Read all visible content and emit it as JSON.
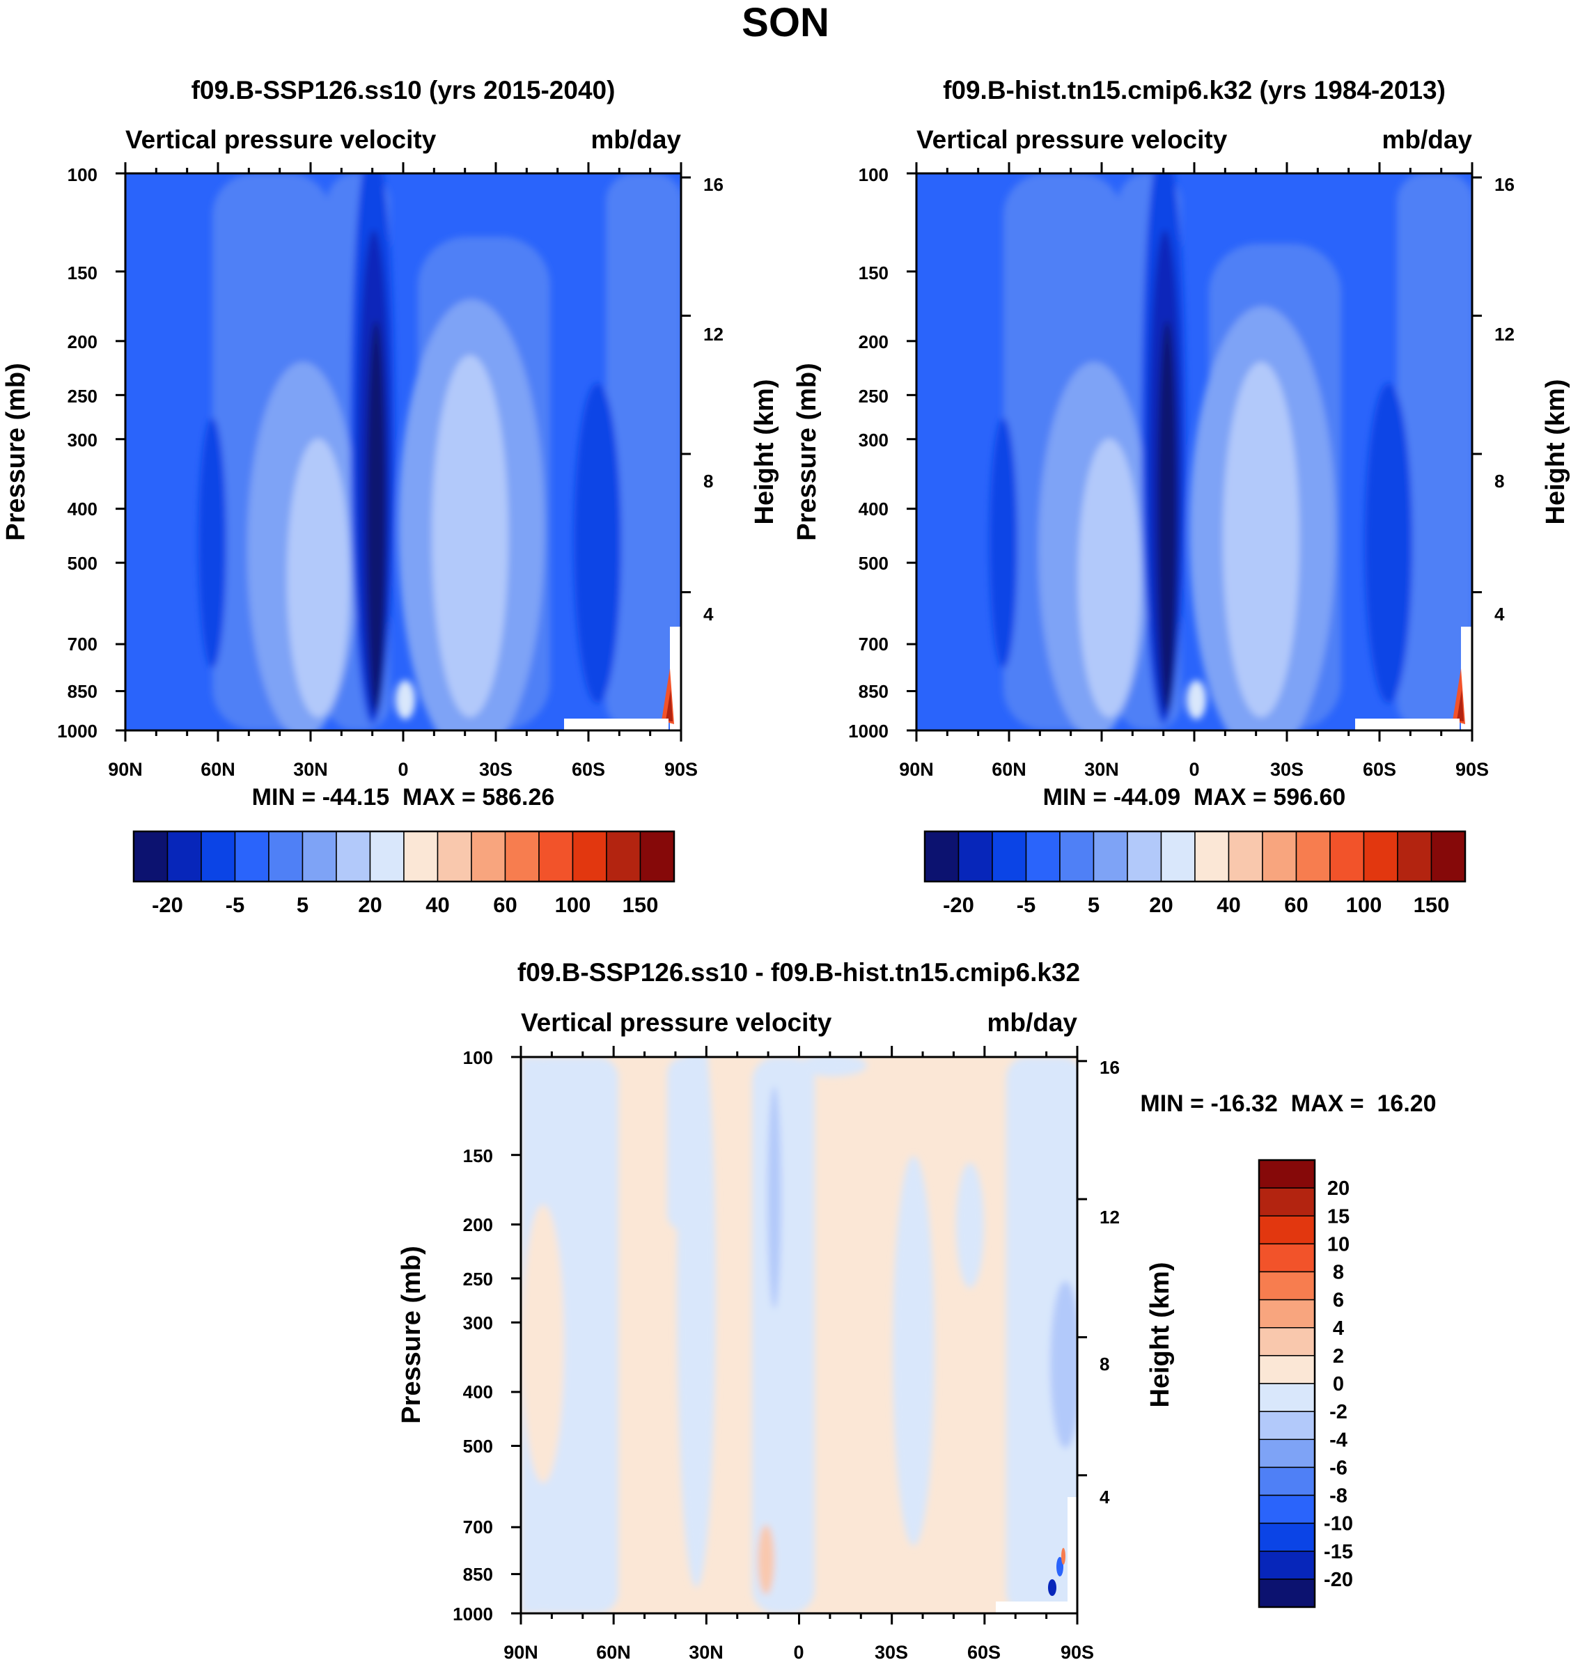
{
  "page_title": "SON",
  "chart_data": [
    {
      "type": "heatmap",
      "title": "f09.B-SSP126.ss10 (yrs 2015-2040)",
      "subtitle_left": "Vertical pressure velocity",
      "subtitle_right": "mb/day",
      "ylabel": "Pressure (mb)",
      "ylabel_right": "Height (km)",
      "x_tick_labels": [
        "90N",
        "60N",
        "30N",
        "0",
        "30S",
        "60S",
        "90S"
      ],
      "y_tick_labels": [
        "100",
        "150",
        "200",
        "250",
        "300",
        "400",
        "500",
        "700",
        "850",
        "1000"
      ],
      "y_right_tick_labels": [
        "16",
        "12",
        "8",
        "4"
      ],
      "stats": "MIN = -44.15  MAX = 586.26",
      "colorbar_labels": [
        "-20",
        "-5",
        "5",
        "20",
        "40",
        "60",
        "100",
        "150"
      ],
      "colorbar_orientation": "horizontal",
      "x": [
        "90N",
        "60N",
        "30N",
        "0",
        "30S",
        "60S",
        "90S"
      ],
      "ylim": [
        1000,
        100
      ],
      "min": -44.15,
      "max": 586.26
    },
    {
      "type": "heatmap",
      "title": "f09.B-hist.tn15.cmip6.k32 (yrs 1984-2013)",
      "subtitle_left": "Vertical pressure velocity",
      "subtitle_right": "mb/day",
      "ylabel": "Pressure (mb)",
      "ylabel_right": "Height (km)",
      "x_tick_labels": [
        "90N",
        "60N",
        "30N",
        "0",
        "30S",
        "60S",
        "90S"
      ],
      "y_tick_labels": [
        "100",
        "150",
        "200",
        "250",
        "300",
        "400",
        "500",
        "700",
        "850",
        "1000"
      ],
      "y_right_tick_labels": [
        "16",
        "12",
        "8",
        "4"
      ],
      "stats": "MIN = -44.09  MAX = 596.60",
      "colorbar_labels": [
        "-20",
        "-5",
        "5",
        "20",
        "40",
        "60",
        "100",
        "150"
      ],
      "colorbar_orientation": "horizontal",
      "x": [
        "90N",
        "60N",
        "30N",
        "0",
        "30S",
        "60S",
        "90S"
      ],
      "ylim": [
        1000,
        100
      ],
      "min": -44.09,
      "max": 596.6
    },
    {
      "type": "heatmap",
      "title": "f09.B-SSP126.ss10 - f09.B-hist.tn15.cmip6.k32",
      "subtitle_left": "Vertical pressure velocity",
      "subtitle_right": "mb/day",
      "ylabel": "Pressure (mb)",
      "ylabel_right": "Height (km)",
      "x_tick_labels": [
        "90N",
        "60N",
        "30N",
        "0",
        "30S",
        "60S",
        "90S"
      ],
      "y_tick_labels": [
        "100",
        "150",
        "200",
        "250",
        "300",
        "400",
        "500",
        "700",
        "850",
        "1000"
      ],
      "y_right_tick_labels": [
        "16",
        "12",
        "8",
        "4"
      ],
      "stats": "MIN = -16.32  MAX =  16.20",
      "colorbar_labels": [
        "20",
        "15",
        "10",
        "8",
        "6",
        "4",
        "2",
        "0",
        "-2",
        "-4",
        "-6",
        "-8",
        "-10",
        "-15",
        "-20"
      ],
      "colorbar_orientation": "vertical",
      "x": [
        "90N",
        "60N",
        "30N",
        "0",
        "30S",
        "60S",
        "90S"
      ],
      "ylim": [
        1000,
        100
      ],
      "min": -16.32,
      "max": 16.2
    }
  ],
  "palette_main": [
    "#0c1270",
    "#0726ba",
    "#0b44e6",
    "#2a64fb",
    "#4f80f6",
    "#7ea3f6",
    "#b2c9fa",
    "#d9e7fb",
    "#fbe7d6",
    "#f9c8ad",
    "#f8a57e",
    "#f77d4f",
    "#f2532a",
    "#e2370f",
    "#b32410",
    "#860909"
  ],
  "palette_diff": [
    "#860909",
    "#b32410",
    "#e2370f",
    "#f2532a",
    "#f77d4f",
    "#f8a57e",
    "#f9c8ad",
    "#fbe7d6",
    "#d9e7fb",
    "#b2c9fa",
    "#7ea3f6",
    "#4f80f6",
    "#2a64fb",
    "#0b44e6",
    "#0726ba",
    "#0c1270"
  ]
}
